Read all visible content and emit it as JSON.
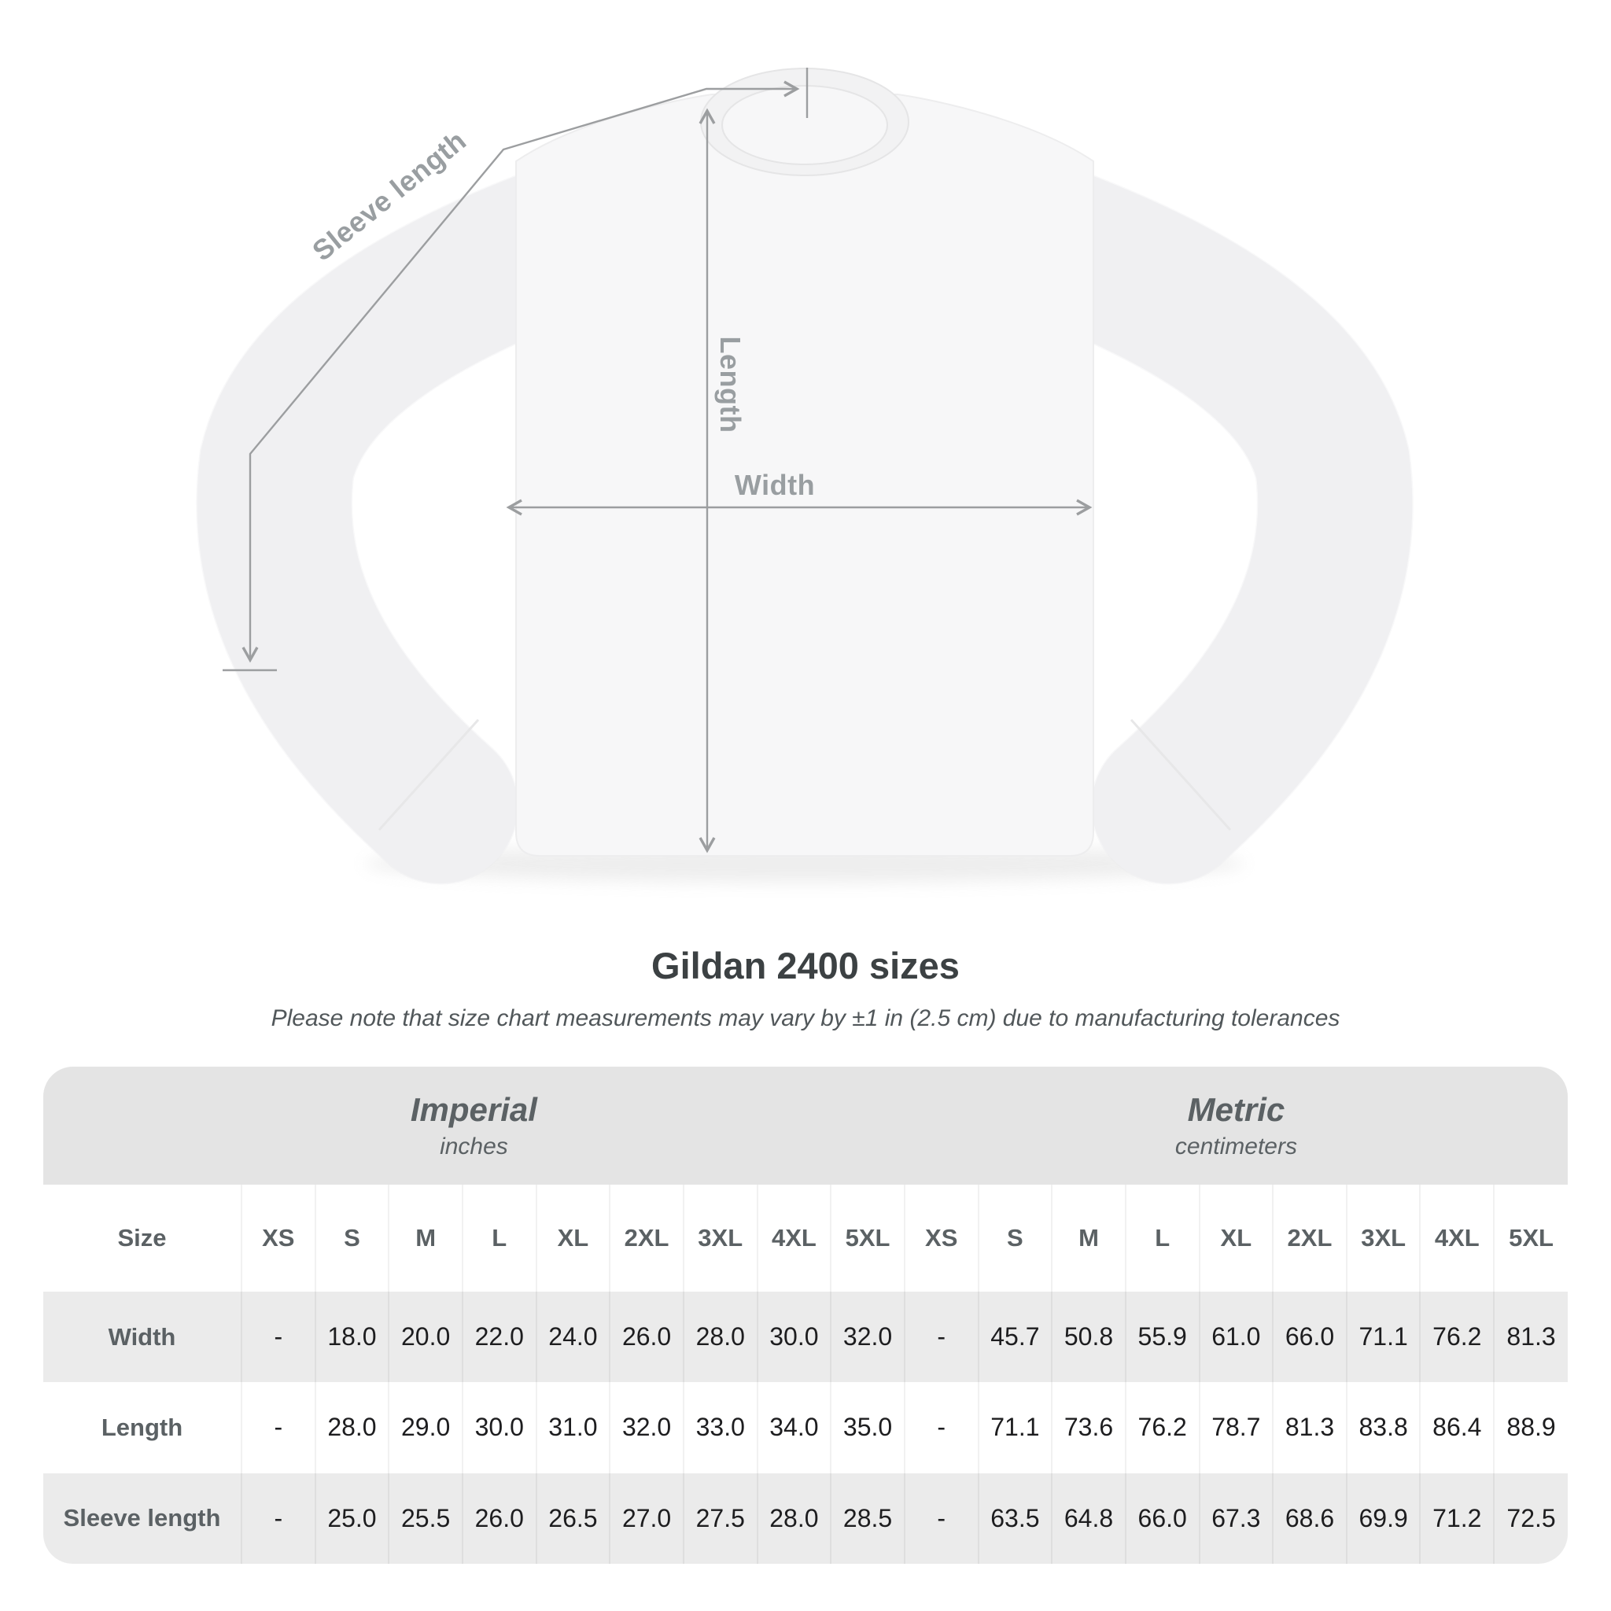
{
  "diagram": {
    "sleeve_length_label": "Sleeve length",
    "length_label": "Length",
    "width_label": "Width",
    "line_color": "#9c9ea0",
    "shirt_body_color": "#f7f7f8",
    "shirt_sleeve_color": "#f3f3f4",
    "shirt_edge_color": "#ededee"
  },
  "title": "Gildan 2400 sizes",
  "subtitle": "Please note that size chart measurements may vary by ±1 in (2.5 cm) due to manufacturing tolerances",
  "table": {
    "imperial_header": {
      "title": "Imperial",
      "unit": "inches"
    },
    "metric_header": {
      "title": "Metric",
      "unit": "centimeters"
    },
    "size_header": "Size",
    "sizes": [
      "XS",
      "S",
      "M",
      "L",
      "XL",
      "2XL",
      "3XL",
      "4XL",
      "5XL"
    ],
    "rows": [
      {
        "label": "Width",
        "imperial": [
          "-",
          "18.0",
          "20.0",
          "22.0",
          "24.0",
          "26.0",
          "28.0",
          "30.0",
          "32.0"
        ],
        "metric": [
          "-",
          "45.7",
          "50.8",
          "55.9",
          "61.0",
          "66.0",
          "71.1",
          "76.2",
          "81.3"
        ]
      },
      {
        "label": "Length",
        "imperial": [
          "-",
          "28.0",
          "29.0",
          "30.0",
          "31.0",
          "32.0",
          "33.0",
          "34.0",
          "35.0"
        ],
        "metric": [
          "-",
          "71.1",
          "73.6",
          "76.2",
          "78.7",
          "81.3",
          "83.8",
          "86.4",
          "88.9"
        ]
      },
      {
        "label": "Sleeve length",
        "imperial": [
          "-",
          "25.0",
          "25.5",
          "26.0",
          "26.5",
          "27.0",
          "27.5",
          "28.0",
          "28.5"
        ],
        "metric": [
          "-",
          "63.5",
          "64.8",
          "66.0",
          "67.3",
          "68.6",
          "69.9",
          "71.2",
          "72.5"
        ]
      }
    ],
    "colors": {
      "band_bg": "#e4e4e4",
      "alt_row_bg": "#ebebeb",
      "header_text": "#5b6164",
      "value_text": "#1d1d1f"
    }
  }
}
